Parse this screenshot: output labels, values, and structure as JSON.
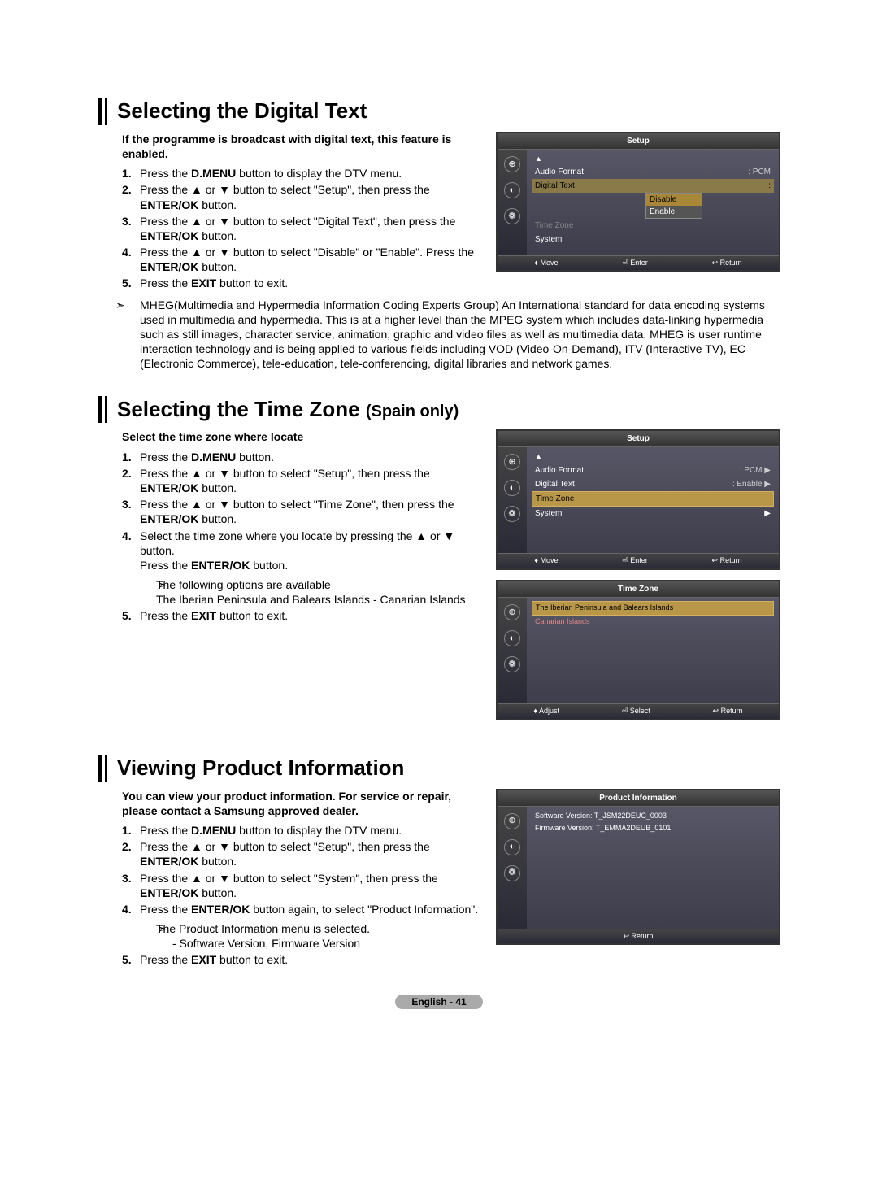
{
  "sections": {
    "s1": {
      "title": "Selecting the Digital Text",
      "intro": "If the programme is broadcast with digital text, this feature is enabled.",
      "steps": {
        "1": "Press the <b>D.MENU</b> button to display the DTV menu.",
        "2": "Press the ▲ or ▼ button to select \"Setup\", then press the <b>ENTER/OK</b> button.",
        "3": "Press the ▲ or ▼ button to select \"Digital Text\", then press the <b>ENTER/OK</b> button.",
        "4": "Press the ▲ or ▼ button to select \"Disable\" or \"Enable\". Press the <b>ENTER/OK</b> button.",
        "5": "Press the <b>EXIT</b> button to exit."
      },
      "note": "MHEG(Multimedia and Hypermedia Information Coding Experts Group) An International standard for data encoding systems used in multimedia and hypermedia. This is at a higher level than the MPEG system which includes data-linking hypermedia such as still images, character service, animation, graphic and video files as well as multimedia data. MHEG is user runtime interaction technology and is being applied to various fields including VOD (Video-On-Demand), ITV (Interactive TV), EC (Electronic Commerce), tele-education, tele-conferencing, digital libraries and network games."
    },
    "s2": {
      "title_main": "Selecting the Time Zone",
      "title_sub": "(Spain only)",
      "intro": "Select the time zone where locate",
      "steps": {
        "1": "Press the <b>D.MENU</b> button.",
        "2": "Press the ▲ or ▼ button to select \"Setup\", then press the <b>ENTER/OK</b> button.",
        "3": "Press the ▲ or ▼ button to select \"Time Zone\", then press the <b>ENTER/OK</b> button.",
        "4": "Select the time zone where you locate by pressing the ▲ or ▼ button.<br>Press the <b>ENTER/OK</b> button.",
        "5": "Press the <b>EXIT</b> button to exit."
      },
      "note4": "The following options are available",
      "note4b": "The Iberian Peninsula and Balears Islands - Canarian Islands"
    },
    "s3": {
      "title": "Viewing Product Information",
      "intro": "You can view your product information. For service or repair, please contact a Samsung approved dealer.",
      "steps": {
        "1": "Press the <b>D.MENU</b> button to display the DTV menu.",
        "2": "Press the ▲ or ▼ button to select \"Setup\", then press the <b>ENTER/OK</b> button.",
        "3": "Press the ▲ or ▼ button to select \"System\", then press the <b>ENTER/OK</b> button.",
        "4": "Press the <b>ENTER/OK</b> button again, to select \"Product Information\".",
        "5": "Press the <b>EXIT</b> button to exit."
      },
      "note4": "The Product Information menu is selected.",
      "note4b": "- Software Version, Firmware Version"
    }
  },
  "osd": {
    "setup": "Setup",
    "audio_format": "Audio Format",
    "pcm": ": PCM",
    "digital_text": "Digital Text",
    "disable": "Disable",
    "enable": "Enable",
    "enable_v": ": Enable",
    "time_zone": "Time Zone",
    "system": "System",
    "move": "Move",
    "enter": "Enter",
    "return": "Return",
    "adjust": "Adjust",
    "select": "Select",
    "iberian": "The Iberian Peninsula and Balears Islands",
    "canarian": "Canarian Islands",
    "product_info": "Product Information",
    "software": "Software Version: T_JSM22DEUC_0003",
    "firmware": "Firmware Version: T_EMMA2DEUB_0101",
    "up": "▲",
    "arrow": "▶",
    "updown": "♦",
    "ent_icon": "⏎",
    "ret_icon": "↩"
  },
  "footer": "English - 41"
}
